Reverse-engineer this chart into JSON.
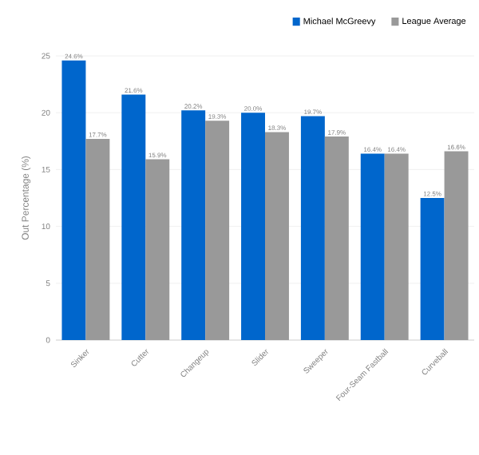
{
  "chart_data": {
    "type": "bar",
    "ylabel": "Out Percentage (%)",
    "categories": [
      "Sinker",
      "Cutter",
      "Changeup",
      "Slider",
      "Sweeper",
      "Four-Seam Fastball",
      "Curveball"
    ],
    "series": [
      {
        "name": "Michael McGreevy",
        "color": "#0066cc",
        "values": [
          24.6,
          21.6,
          20.2,
          20.0,
          19.7,
          16.4,
          12.5
        ],
        "value_labels": [
          "24.6%",
          "21.6%",
          "20.2%",
          "20.0%",
          "19.7%",
          "16.4%",
          "12.5%"
        ]
      },
      {
        "name": "League Average",
        "color": "#999999",
        "values": [
          17.7,
          15.9,
          19.3,
          18.3,
          17.9,
          16.4,
          16.6
        ],
        "value_labels": [
          "17.7%",
          "15.9%",
          "19.3%",
          "18.3%",
          "17.9%",
          "16.4%",
          "16.6%"
        ]
      }
    ],
    "ylim": [
      0,
      25
    ],
    "yticks": [
      0,
      5,
      10,
      15,
      20,
      25
    ],
    "grid": "y",
    "legend": "top right"
  }
}
